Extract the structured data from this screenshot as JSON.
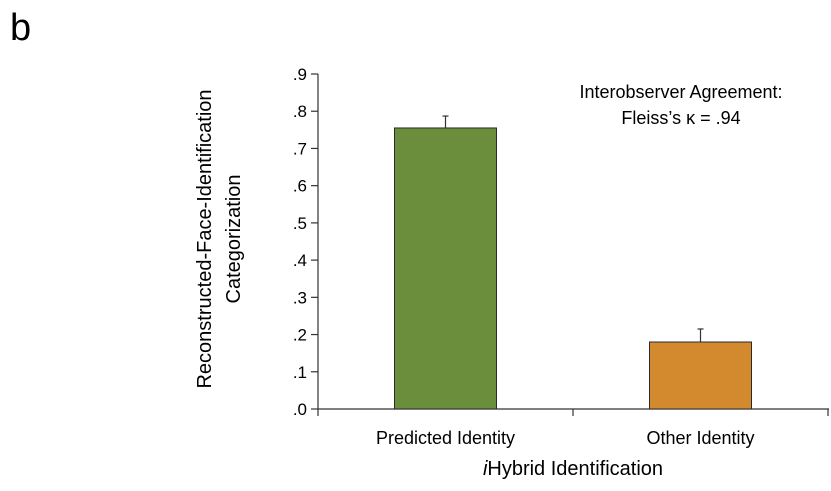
{
  "panel_label": "b",
  "chart_data": {
    "type": "bar",
    "categories": [
      "Predicted Identity",
      "Other Identity"
    ],
    "values": [
      0.755,
      0.18
    ],
    "error_upper": [
      0.787,
      0.215
    ],
    "colors": [
      "#6b8e3d",
      "#d38a2e"
    ],
    "ylim": [
      0,
      0.9
    ],
    "y_ticks": [
      0,
      0.1,
      0.2,
      0.3,
      0.4,
      0.5,
      0.6,
      0.7,
      0.8,
      0.9
    ],
    "y_tick_labels": [
      ".0",
      ".1",
      ".2",
      ".3",
      ".4",
      ".5",
      ".6",
      ".7",
      ".8",
      ".9"
    ],
    "xlabel_prefix": "i",
    "xlabel_rest": "Hybrid Identification",
    "ylabel_line1": "Reconstructed-Face-Identification",
    "ylabel_line2": "Categorization",
    "annotation_line1": "Interobserver Agreement:",
    "annotation_line2": "Fleiss’s κ = .94",
    "grid": false,
    "legend": "none"
  }
}
